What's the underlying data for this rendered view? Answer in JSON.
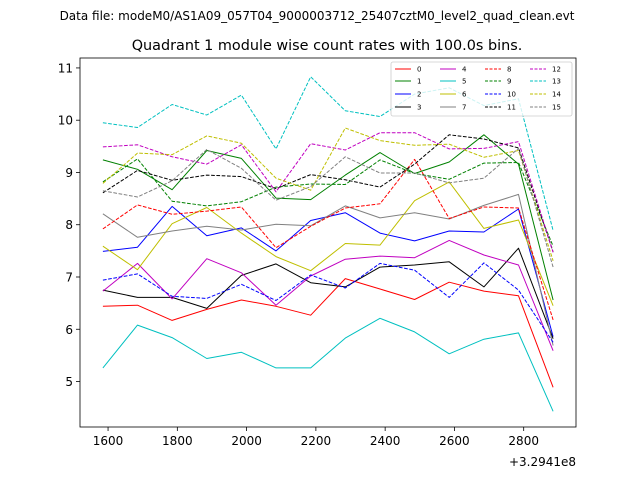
{
  "header": {
    "data_file": "Data file: modeM0/AS1A09_057T04_9000003712_25407cztM0_level2_quad_clean.evt"
  },
  "chart_data": {
    "type": "line",
    "title": "Quadrant 1 module wise count rates with 100.0s bins.",
    "xlabel": "",
    "ylabel": "",
    "x_offset_label": "+3.2941e8",
    "x": [
      1585,
      1685,
      1785,
      1885,
      1985,
      2085,
      2185,
      2285,
      2385,
      2485,
      2585,
      2685,
      2785,
      2885
    ],
    "xlim": [
      1519,
      2951
    ],
    "ylim": [
      4.13,
      11.19
    ],
    "xticks": [
      1600,
      1800,
      2000,
      2200,
      2400,
      2600,
      2800
    ],
    "yticks": [
      5,
      6,
      7,
      8,
      9,
      10,
      11
    ],
    "legend_position": "top-right",
    "series": [
      {
        "name": "0",
        "color": "#ff0000",
        "style": "solid",
        "values": [
          6.44,
          6.46,
          6.17,
          6.38,
          6.56,
          6.44,
          6.27,
          6.97,
          6.77,
          6.57,
          6.9,
          6.73,
          6.64,
          4.89
        ]
      },
      {
        "name": "1",
        "color": "#008000",
        "style": "solid",
        "values": [
          9.24,
          9.06,
          8.67,
          9.42,
          9.27,
          8.51,
          8.48,
          8.95,
          9.38,
          8.98,
          9.2,
          9.72,
          9.16,
          6.56
        ]
      },
      {
        "name": "2",
        "color": "#0000ff",
        "style": "solid",
        "values": [
          7.49,
          7.57,
          8.35,
          7.79,
          7.94,
          7.5,
          8.08,
          8.23,
          7.84,
          7.69,
          7.88,
          7.86,
          8.3,
          5.86
        ]
      },
      {
        "name": "3",
        "color": "#000000",
        "style": "solid",
        "values": [
          6.75,
          6.61,
          6.61,
          6.4,
          7.03,
          7.25,
          6.89,
          6.81,
          7.19,
          7.23,
          7.29,
          6.81,
          7.55,
          5.82
        ]
      },
      {
        "name": "4",
        "color": "#c000c0",
        "style": "solid",
        "values": [
          6.73,
          7.26,
          6.58,
          7.35,
          7.08,
          6.46,
          7.02,
          7.34,
          7.4,
          7.37,
          7.7,
          7.42,
          7.23,
          5.59
        ]
      },
      {
        "name": "5",
        "color": "#00c0c0",
        "style": "solid",
        "values": [
          5.26,
          6.08,
          5.84,
          5.44,
          5.56,
          5.26,
          5.26,
          5.83,
          6.21,
          5.95,
          5.53,
          5.81,
          5.93,
          4.43
        ]
      },
      {
        "name": "6",
        "color": "#bfbf00",
        "style": "solid",
        "values": [
          7.59,
          7.14,
          8.02,
          8.33,
          7.84,
          7.39,
          7.12,
          7.64,
          7.61,
          8.46,
          8.82,
          7.93,
          8.09,
          6.45
        ]
      },
      {
        "name": "7",
        "color": "#808080",
        "style": "solid",
        "values": [
          8.21,
          7.76,
          7.88,
          7.97,
          7.9,
          8.01,
          7.98,
          8.36,
          8.13,
          8.23,
          8.11,
          8.37,
          8.58,
          5.69
        ]
      },
      {
        "name": "8",
        "color": "#ff0000",
        "style": "dashed",
        "values": [
          7.92,
          8.38,
          8.2,
          8.26,
          8.34,
          7.56,
          7.97,
          8.32,
          8.4,
          9.25,
          8.12,
          8.34,
          8.32,
          6.18
        ]
      },
      {
        "name": "9",
        "color": "#008000",
        "style": "dashed",
        "values": [
          8.82,
          9.26,
          8.45,
          8.36,
          8.44,
          8.72,
          8.78,
          8.77,
          9.24,
          8.98,
          8.87,
          9.18,
          9.19,
          7.59
        ]
      },
      {
        "name": "10",
        "color": "#0000ff",
        "style": "dashed",
        "values": [
          6.94,
          7.06,
          6.63,
          6.59,
          6.86,
          6.55,
          7.04,
          6.79,
          7.26,
          7.13,
          6.61,
          7.27,
          6.75,
          5.75
        ]
      },
      {
        "name": "11",
        "color": "#000000",
        "style": "dashed",
        "values": [
          8.61,
          9.04,
          8.85,
          8.95,
          8.92,
          8.69,
          8.96,
          8.86,
          8.72,
          9.16,
          9.72,
          9.64,
          9.47,
          7.48
        ]
      },
      {
        "name": "12",
        "color": "#c000c0",
        "style": "dashed",
        "values": [
          9.49,
          9.53,
          9.3,
          9.16,
          9.53,
          8.63,
          9.55,
          9.43,
          9.76,
          9.76,
          9.45,
          9.46,
          9.59,
          7.47
        ]
      },
      {
        "name": "13",
        "color": "#00c0c0",
        "style": "dashed",
        "values": [
          9.95,
          9.86,
          10.3,
          10.1,
          10.48,
          9.45,
          10.83,
          10.18,
          10.07,
          10.5,
          10.62,
          10.28,
          10.41,
          7.89
        ]
      },
      {
        "name": "14",
        "color": "#bfbf00",
        "style": "dashed",
        "values": [
          8.79,
          9.37,
          9.34,
          9.7,
          9.56,
          8.89,
          8.66,
          9.85,
          9.61,
          9.52,
          9.54,
          9.29,
          9.42,
          7.31
        ]
      },
      {
        "name": "15",
        "color": "#808080",
        "style": "dashed",
        "values": [
          8.65,
          8.53,
          8.84,
          9.44,
          9.08,
          8.47,
          8.73,
          9.3,
          8.99,
          8.99,
          8.8,
          8.89,
          9.46,
          7.19
        ]
      }
    ]
  }
}
